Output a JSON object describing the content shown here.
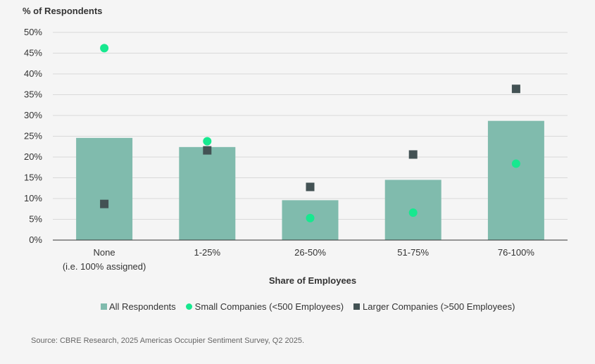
{
  "chart_data": {
    "type": "bar",
    "ylabel": "% of Respondents",
    "xlabel": "Share of Employees",
    "ylim": [
      0,
      50
    ],
    "yticks": [
      0,
      5,
      10,
      15,
      20,
      25,
      30,
      35,
      40,
      45,
      50
    ],
    "ytick_labels": [
      "0%",
      "5%",
      "10%",
      "15%",
      "20%",
      "25%",
      "30%",
      "35%",
      "40%",
      "45%",
      "50%"
    ],
    "categories": [
      [
        "None",
        "(i.e. 100% assigned)"
      ],
      [
        "1-25%"
      ],
      [
        "26-50%"
      ],
      [
        "51-75%"
      ],
      [
        "76-100%"
      ]
    ],
    "series": [
      {
        "name": "All Respondents",
        "kind": "bar",
        "values": [
          24.6,
          22.4,
          9.6,
          14.5,
          28.7
        ]
      },
      {
        "name": "Small Companies (<500 Employees)",
        "kind": "circle",
        "values": [
          46.2,
          23.8,
          5.3,
          6.6,
          18.4
        ]
      },
      {
        "name": "Larger Companies (>500 Employees)",
        "kind": "square",
        "values": [
          8.7,
          21.6,
          12.8,
          20.6,
          36.4
        ]
      }
    ],
    "colors": {
      "bar": "#80bbad",
      "circle": "#17e88f",
      "square": "#435254",
      "grid": "#d9d9d9",
      "axis": "#333333"
    },
    "grid": true,
    "legend_position": "bottom"
  },
  "legend": {
    "all": "All Respondents",
    "small": "Small Companies (<500 Employees)",
    "large": "Larger Companies (>500 Employees)"
  },
  "source": "Source: CBRE Research, 2025 Americas Occupier Sentiment Survey, Q2 2025."
}
